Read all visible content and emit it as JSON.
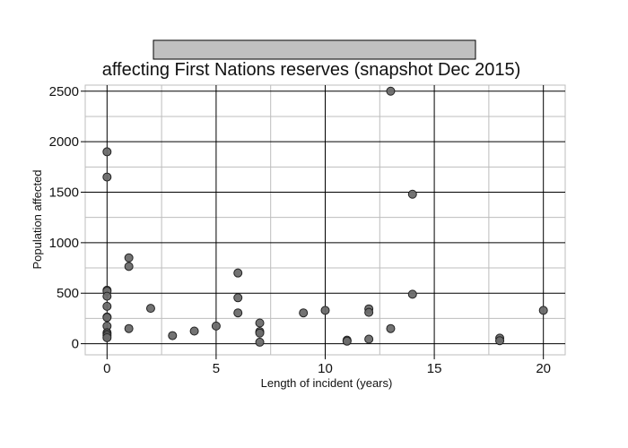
{
  "chart_data": {
    "type": "scatter",
    "title": "affecting First Nations reserves (snapshot Dec 2015)",
    "xlabel": "Length of incident (years)",
    "ylabel": "Population affected",
    "xlim": [
      -1,
      21
    ],
    "ylim": [
      -110,
      2560
    ],
    "x_ticks": [
      0,
      5,
      10,
      15,
      20
    ],
    "y_ticks": [
      0,
      500,
      1000,
      1500,
      2000,
      2500
    ],
    "grid": true,
    "legend": "none",
    "colors": {
      "point_fill": "#6b6b6b",
      "point_stroke": "#222222",
      "title_bar": "#c0c0c0",
      "major_grid": "#000000",
      "minor_grid": "#bdbdbd"
    },
    "points": [
      {
        "x": 0,
        "y": 1900
      },
      {
        "x": 0,
        "y": 1650
      },
      {
        "x": 0,
        "y": 530
      },
      {
        "x": 0,
        "y": 520
      },
      {
        "x": 0,
        "y": 470
      },
      {
        "x": 0,
        "y": 370
      },
      {
        "x": 0,
        "y": 265
      },
      {
        "x": 0,
        "y": 260
      },
      {
        "x": 0,
        "y": 175
      },
      {
        "x": 0,
        "y": 110
      },
      {
        "x": 0,
        "y": 95
      },
      {
        "x": 0,
        "y": 80
      },
      {
        "x": 0,
        "y": 60
      },
      {
        "x": 1,
        "y": 850
      },
      {
        "x": 1,
        "y": 765
      },
      {
        "x": 1,
        "y": 150
      },
      {
        "x": 2,
        "y": 350
      },
      {
        "x": 3,
        "y": 80
      },
      {
        "x": 4,
        "y": 125
      },
      {
        "x": 5,
        "y": 175
      },
      {
        "x": 6,
        "y": 700
      },
      {
        "x": 6,
        "y": 455
      },
      {
        "x": 6,
        "y": 305
      },
      {
        "x": 7,
        "y": 205
      },
      {
        "x": 7,
        "y": 120
      },
      {
        "x": 7,
        "y": 105
      },
      {
        "x": 7,
        "y": 15
      },
      {
        "x": 9,
        "y": 305
      },
      {
        "x": 10,
        "y": 330
      },
      {
        "x": 11,
        "y": 35
      },
      {
        "x": 11,
        "y": 25
      },
      {
        "x": 12,
        "y": 345
      },
      {
        "x": 12,
        "y": 310
      },
      {
        "x": 12,
        "y": 45
      },
      {
        "x": 13,
        "y": 2500
      },
      {
        "x": 13,
        "y": 150
      },
      {
        "x": 14,
        "y": 1480
      },
      {
        "x": 14,
        "y": 490
      },
      {
        "x": 18,
        "y": 55
      },
      {
        "x": 18,
        "y": 30
      },
      {
        "x": 20,
        "y": 330
      }
    ]
  }
}
